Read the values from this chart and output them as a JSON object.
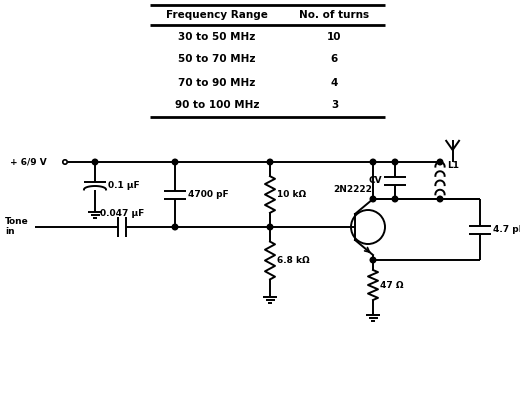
{
  "table": {
    "headers": [
      "Frequency Range",
      "No. of turns"
    ],
    "rows": [
      [
        "30 to 50 MHz",
        "10"
      ],
      [
        "50 to 70 MHz",
        "6"
      ],
      [
        "70 to 90 MHz",
        "4"
      ],
      [
        "90 to 100 MHz",
        "3"
      ]
    ]
  },
  "bg_color": "#ffffff"
}
